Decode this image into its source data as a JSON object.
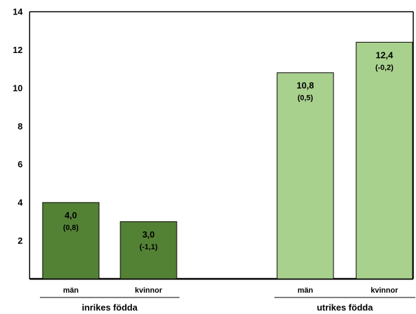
{
  "chart_data": {
    "type": "bar",
    "title": "",
    "xlabel": "",
    "ylabel": "",
    "ylim": [
      0,
      14
    ],
    "yticks": [
      2,
      4,
      6,
      8,
      10,
      12,
      14
    ],
    "grid": false,
    "legend": "none",
    "groups": [
      {
        "label": "inrikes födda",
        "color": "#548235",
        "bars": [
          {
            "category": "män",
            "value": 4.0,
            "value_label": "4,0",
            "change_label": "(0,8)"
          },
          {
            "category": "kvinnor",
            "value": 3.0,
            "value_label": "3,0",
            "change_label": "(-1,1)"
          }
        ]
      },
      {
        "label": "utrikes födda",
        "color": "#a9d18e",
        "bars": [
          {
            "category": "män",
            "value": 10.8,
            "value_label": "10,8",
            "change_label": "(0,5)"
          },
          {
            "category": "kvinnor",
            "value": 12.4,
            "value_label": "12,4",
            "change_label": "(-0,2)"
          }
        ]
      }
    ]
  }
}
